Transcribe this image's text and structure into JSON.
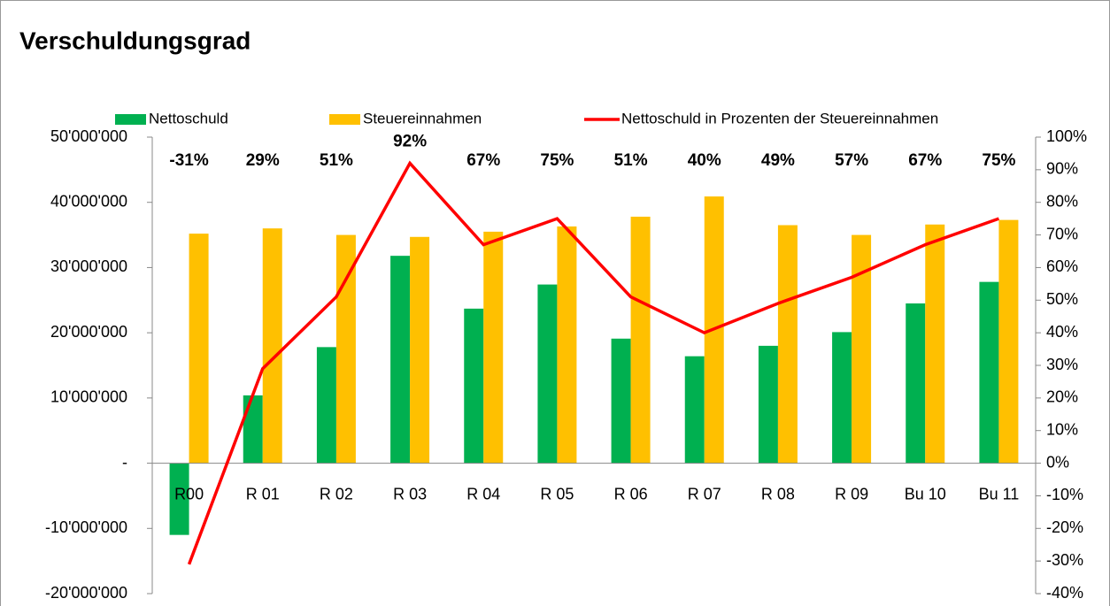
{
  "chart_data": {
    "type": "bar",
    "title": "Verschuldungsgrad",
    "categories": [
      "R00",
      "R 01",
      "R 02",
      "R 03",
      "R 04",
      "R 05",
      "R 06",
      "R 07",
      "R 08",
      "R 09",
      "Bu 10",
      "Bu 11"
    ],
    "series": [
      {
        "name": "Nettoschuld",
        "color": "#00b050",
        "values": [
          -11000000,
          10400000,
          17800000,
          31800000,
          23700000,
          27400000,
          19100000,
          16400000,
          18000000,
          20100000,
          24500000,
          27800000
        ]
      },
      {
        "name": "Steuereinnahmen",
        "color": "#ffc000",
        "values": [
          35200000,
          36000000,
          35000000,
          34700000,
          35500000,
          36300000,
          37800000,
          40900000,
          36500000,
          35000000,
          36600000,
          37300000
        ]
      },
      {
        "name": "Nettoschuld in Prozenten der Steuereinnahmen",
        "color": "#ff0000",
        "type": "line",
        "axis": "y2",
        "values": [
          -31,
          29,
          51,
          92,
          67,
          75,
          51,
          40,
          49,
          57,
          67,
          75
        ],
        "value_labels": [
          "-31%",
          "29%",
          "51%",
          "92%",
          "67%",
          "75%",
          "51%",
          "40%",
          "49%",
          "57%",
          "67%",
          "75%"
        ]
      }
    ],
    "ylim": [
      -20000000,
      50000000
    ],
    "yticks": [
      {
        "value": -20000000,
        "label": "-20'000'000"
      },
      {
        "value": -10000000,
        "label": "-10'000'000"
      },
      {
        "value": 0,
        "label": "-"
      },
      {
        "value": 10000000,
        "label": "10'000'000"
      },
      {
        "value": 20000000,
        "label": "20'000'000"
      },
      {
        "value": 30000000,
        "label": "30'000'000"
      },
      {
        "value": 40000000,
        "label": "40'000'000"
      },
      {
        "value": 50000000,
        "label": "50'000'000"
      }
    ],
    "y2lim": [
      -40,
      100
    ],
    "y2ticks": [
      {
        "value": -40,
        "label": "-40%"
      },
      {
        "value": -30,
        "label": "-30%"
      },
      {
        "value": -20,
        "label": "-20%"
      },
      {
        "value": -10,
        "label": "-10%"
      },
      {
        "value": 0,
        "label": "0%"
      },
      {
        "value": 10,
        "label": "10%"
      },
      {
        "value": 20,
        "label": "20%"
      },
      {
        "value": 30,
        "label": "30%"
      },
      {
        "value": 40,
        "label": "40%"
      },
      {
        "value": 50,
        "label": "50%"
      },
      {
        "value": 60,
        "label": "60%"
      },
      {
        "value": 70,
        "label": "70%"
      },
      {
        "value": 80,
        "label": "80%"
      },
      {
        "value": 90,
        "label": "90%"
      },
      {
        "value": 100,
        "label": "100%"
      }
    ],
    "legend": "top"
  }
}
